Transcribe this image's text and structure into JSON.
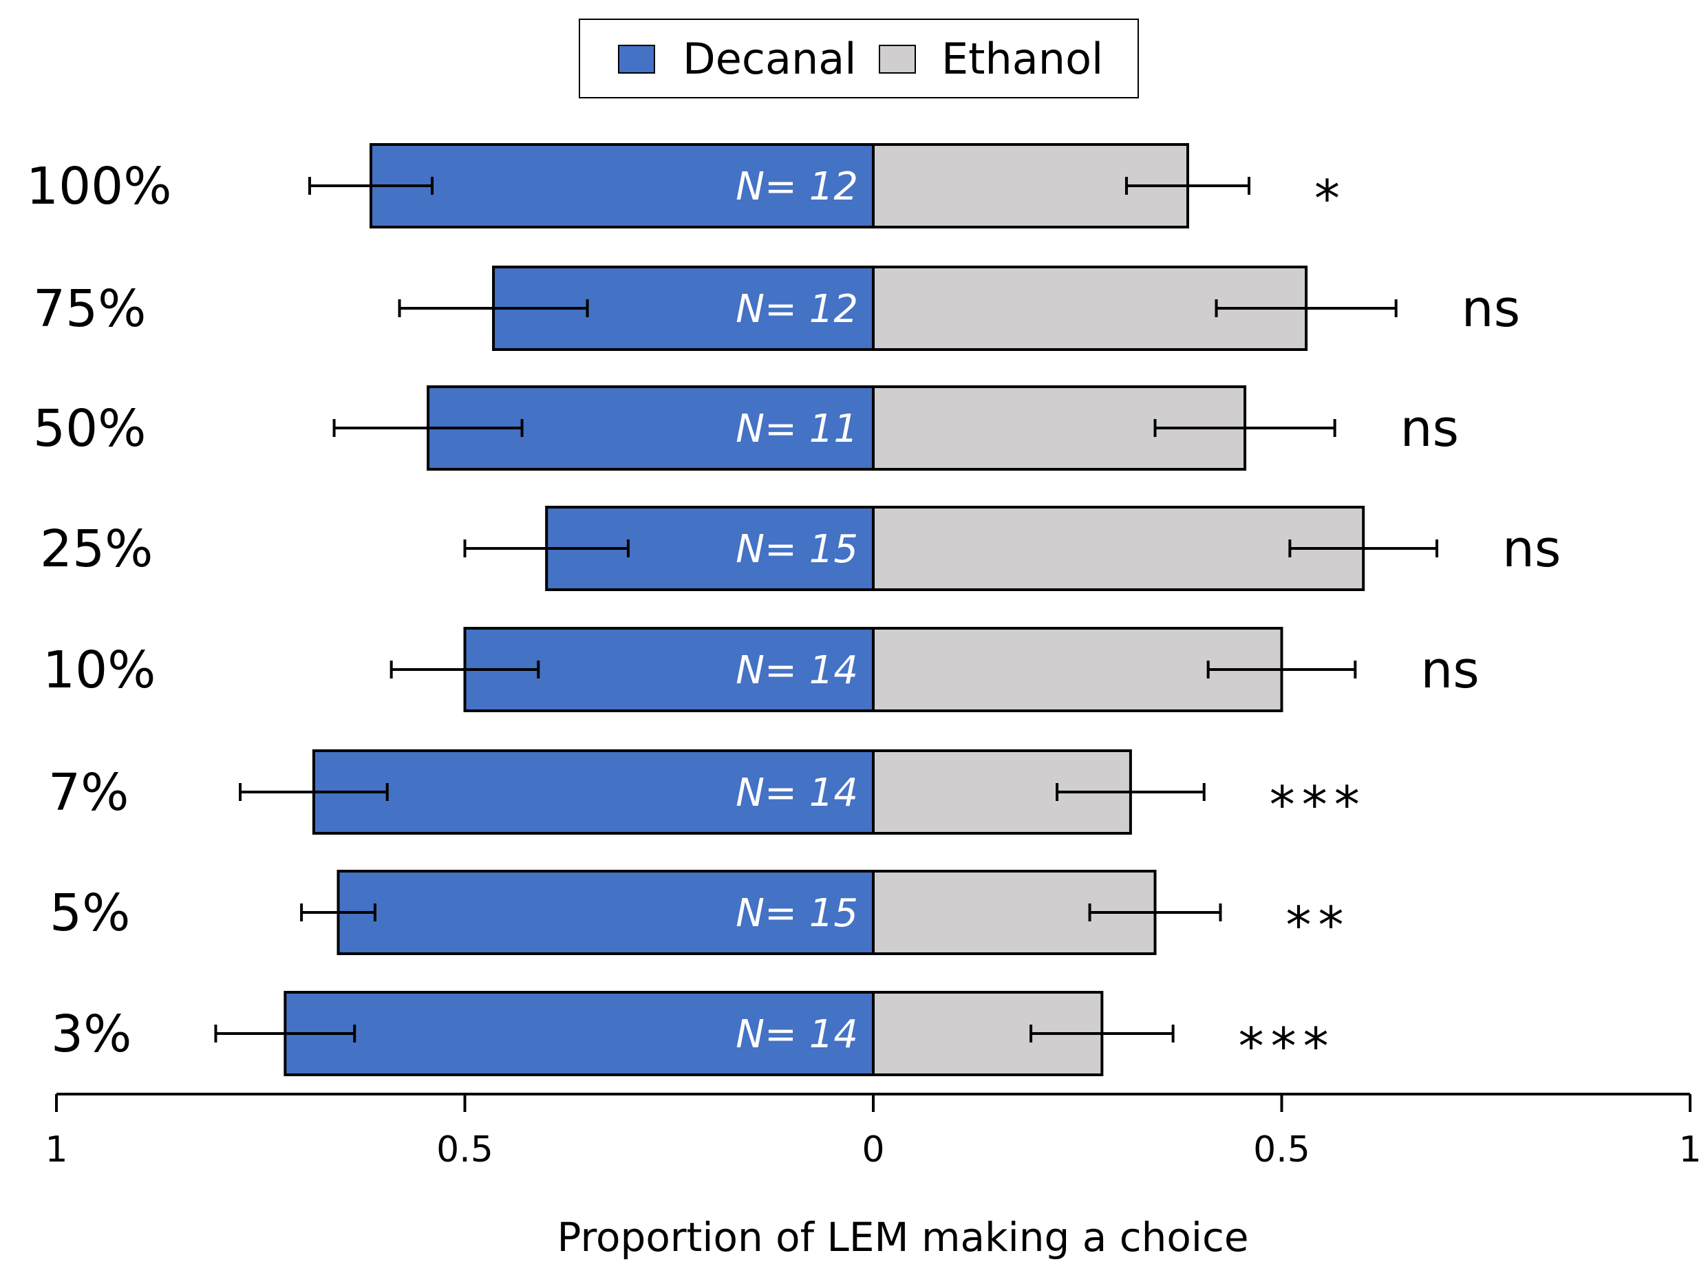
{
  "chart_data": {
    "type": "bar",
    "orientation": "horizontal-diverging",
    "categories": [
      "100%",
      "75%",
      "50%",
      "25%",
      "10%",
      "7%",
      "5%",
      "3%"
    ],
    "series": [
      {
        "name": "Decanal",
        "color": "#4472C4",
        "values": [
          0.615,
          0.465,
          0.545,
          0.4,
          0.5,
          0.685,
          0.655,
          0.72
        ],
        "errors": [
          0.075,
          0.115,
          0.115,
          0.1,
          0.09,
          0.09,
          0.045,
          0.085
        ]
      },
      {
        "name": "Ethanol",
        "color": "#D0CECE",
        "values": [
          0.385,
          0.53,
          0.455,
          0.6,
          0.5,
          0.315,
          0.345,
          0.28
        ],
        "errors": [
          0.075,
          0.11,
          0.11,
          0.09,
          0.09,
          0.09,
          0.08,
          0.087
        ]
      }
    ],
    "n_labels": [
      "N= 12",
      "N= 12",
      "N= 11",
      "N= 15",
      "N= 14",
      "N= 14",
      "N= 15",
      "N= 14"
    ],
    "significance": [
      "*",
      "ns",
      "ns",
      "ns",
      "ns",
      "***",
      "**",
      "***"
    ],
    "x_ticks": [
      "1",
      "0.5",
      "0",
      "0.5",
      "1"
    ],
    "xlabel": "Proportion of LEM making a choice",
    "ylabel": "",
    "xlim": [
      -1,
      1
    ],
    "legend_position": "top-center"
  }
}
